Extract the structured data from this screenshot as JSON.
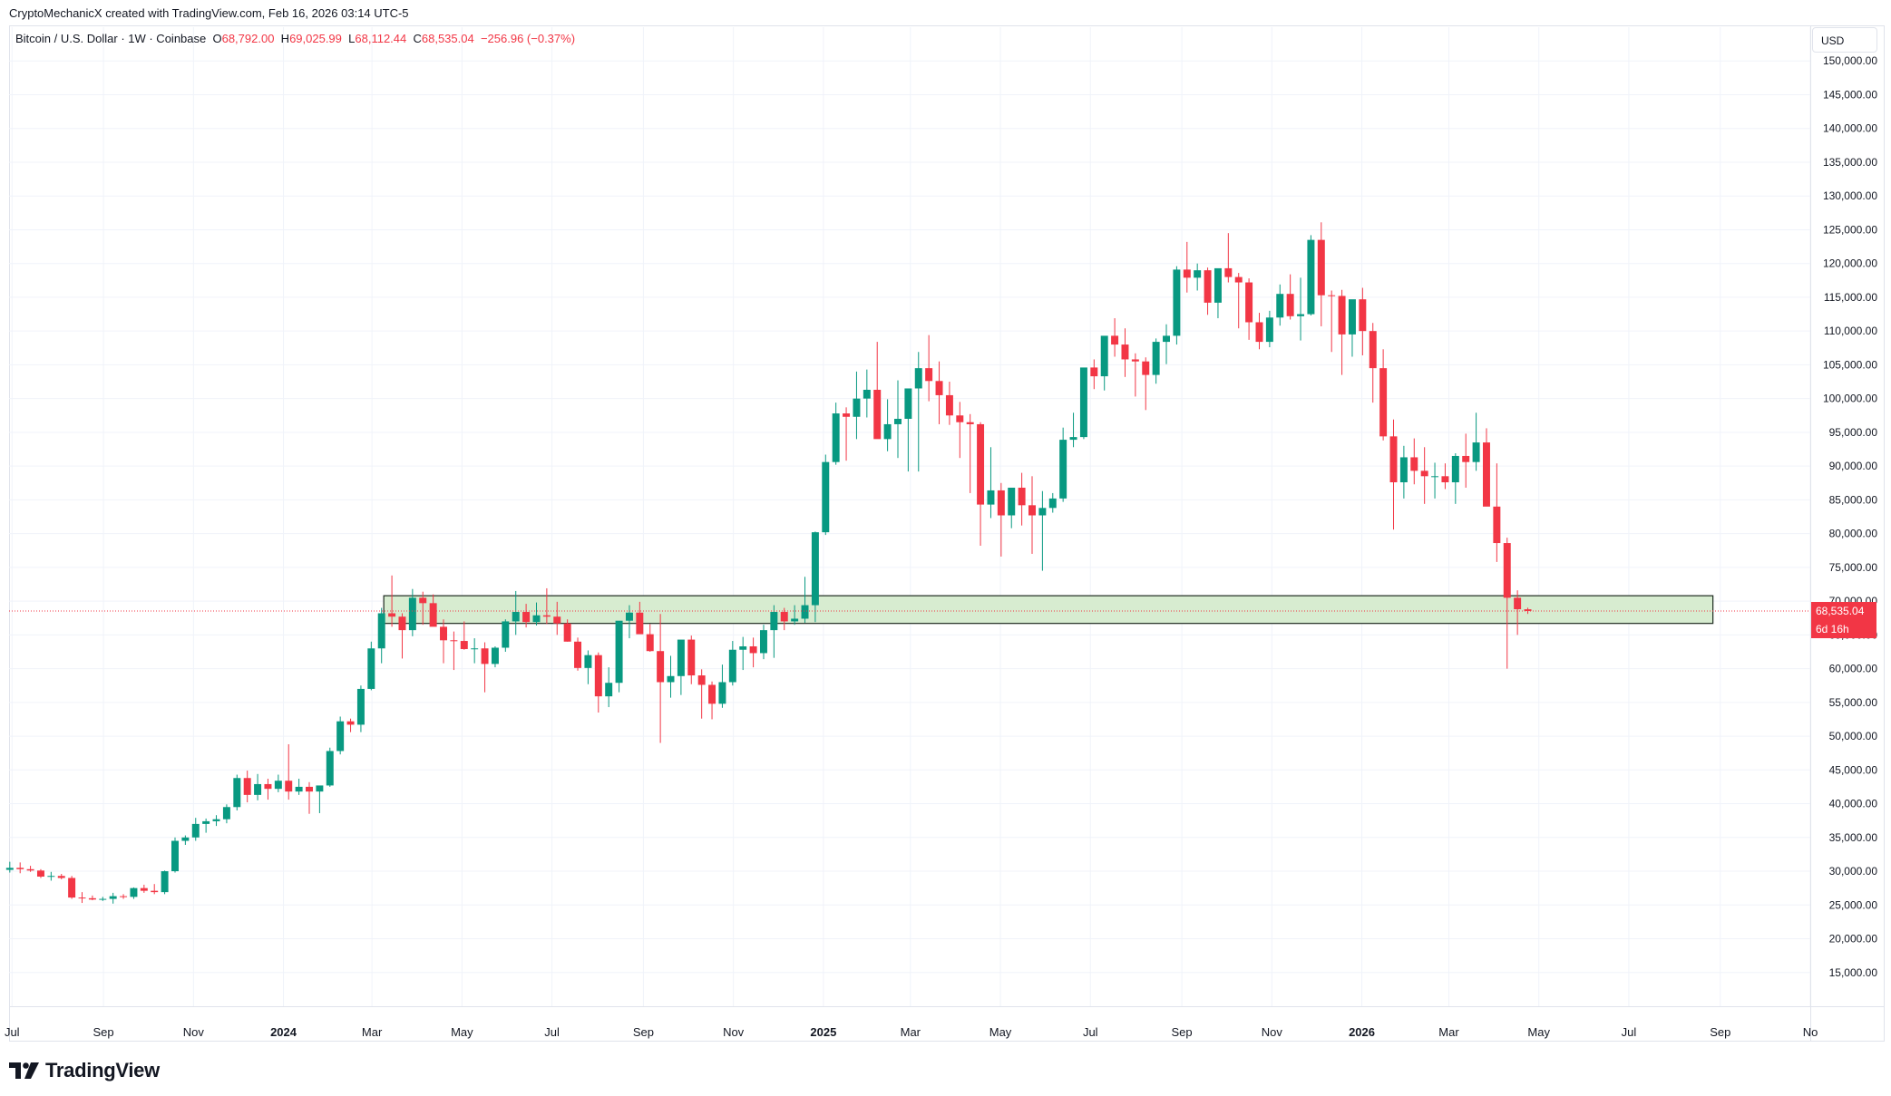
{
  "attribution": "CryptoMechanicX created with TradingView.com, Feb 16, 2026 03:14 UTC-5",
  "legend": {
    "symbol": "Bitcoin / U.S. Dollar · 1W · Coinbase",
    "o_label": "O",
    "o_value": "68,792.00",
    "h_label": "H",
    "h_value": "69,025.99",
    "l_label": "L",
    "l_value": "68,112.44",
    "c_label": "C",
    "c_value": "68,535.04",
    "change": "−256.96 (−0.37%)"
  },
  "currency_button": "USD",
  "price_tag": {
    "price": "68,535.04",
    "countdown": "6d 16h"
  },
  "brand": {
    "name": "TradingView"
  },
  "colors": {
    "up": "#089981",
    "down": "#f23645",
    "zone_fill": "#d7ecd0",
    "zone_border": "#1e2a20",
    "grid": "#f0f3fa"
  },
  "chart_data": {
    "type": "candlestick",
    "interval": "1W",
    "ylim": [
      10000,
      155000
    ],
    "y_ticks": [
      15000,
      20000,
      25000,
      30000,
      35000,
      40000,
      45000,
      50000,
      55000,
      60000,
      65000,
      70000,
      75000,
      80000,
      85000,
      90000,
      95000,
      100000,
      105000,
      110000,
      115000,
      120000,
      125000,
      130000,
      135000,
      140000,
      145000,
      150000
    ],
    "y_tick_labels": [
      "15,000.00",
      "20,000.00",
      "25,000.00",
      "30,000.00",
      "35,000.00",
      "40,000.00",
      "45,000.00",
      "50,000.00",
      "55,000.00",
      "60,000.00",
      "65,000.00",
      "70,000.00",
      "75,000.00",
      "80,000.00",
      "85,000.00",
      "90,000.00",
      "95,000.00",
      "100,000.00",
      "105,000.00",
      "110,000.00",
      "115,000.00",
      "120,000.00",
      "125,000.00",
      "130,000.00",
      "135,000.00",
      "140,000.00",
      "145,000.00",
      "150,000.00"
    ],
    "x_range": [
      "2023-06-29",
      "2026-11-01"
    ],
    "x_ticks": [
      {
        "date": "2023-07-01",
        "label": "Jul",
        "bold": false
      },
      {
        "date": "2023-09-01",
        "label": "Sep",
        "bold": false
      },
      {
        "date": "2023-11-01",
        "label": "Nov",
        "bold": false
      },
      {
        "date": "2024-01-01",
        "label": "2024",
        "bold": true
      },
      {
        "date": "2024-03-01",
        "label": "Mar",
        "bold": false
      },
      {
        "date": "2024-05-01",
        "label": "May",
        "bold": false
      },
      {
        "date": "2024-07-01",
        "label": "Jul",
        "bold": false
      },
      {
        "date": "2024-09-01",
        "label": "Sep",
        "bold": false
      },
      {
        "date": "2024-11-01",
        "label": "Nov",
        "bold": false
      },
      {
        "date": "2025-01-01",
        "label": "2025",
        "bold": true
      },
      {
        "date": "2025-03-01",
        "label": "Mar",
        "bold": false
      },
      {
        "date": "2025-05-01",
        "label": "May",
        "bold": false
      },
      {
        "date": "2025-07-01",
        "label": "Jul",
        "bold": false
      },
      {
        "date": "2025-09-01",
        "label": "Sep",
        "bold": false
      },
      {
        "date": "2025-11-01",
        "label": "Nov",
        "bold": false
      },
      {
        "date": "2026-01-01",
        "label": "2026",
        "bold": true
      },
      {
        "date": "2026-03-01",
        "label": "Mar",
        "bold": false
      },
      {
        "date": "2026-05-01",
        "label": "May",
        "bold": false
      },
      {
        "date": "2026-07-01",
        "label": "Jul",
        "bold": false
      },
      {
        "date": "2026-09-01",
        "label": "Sep",
        "bold": false
      },
      {
        "date": "2026-11-01",
        "label": "No",
        "bold": false
      }
    ],
    "first_candle": "2023-06-26",
    "candles_ohlc": [
      [
        30200,
        31400,
        29800,
        30500
      ],
      [
        30500,
        31300,
        29700,
        30300
      ],
      [
        30300,
        30800,
        29900,
        30100
      ],
      [
        30100,
        30300,
        29000,
        29200
      ],
      [
        29200,
        29900,
        28600,
        29300
      ],
      [
        29300,
        29600,
        28800,
        29000
      ],
      [
        29000,
        29300,
        25900,
        26100
      ],
      [
        26100,
        26900,
        25300,
        26000
      ],
      [
        26000,
        26400,
        25700,
        25800
      ],
      [
        25800,
        26200,
        25600,
        25900
      ],
      [
        25900,
        26800,
        25200,
        26300
      ],
      [
        26300,
        26600,
        25900,
        26200
      ],
      [
        26200,
        27600,
        25900,
        27500
      ],
      [
        27500,
        28000,
        26800,
        27100
      ],
      [
        27100,
        28100,
        26600,
        26900
      ],
      [
        26900,
        30100,
        26600,
        30000
      ],
      [
        30000,
        35000,
        29800,
        34500
      ],
      [
        34500,
        35300,
        33900,
        35000
      ],
      [
        35000,
        37900,
        34500,
        37000
      ],
      [
        37000,
        37800,
        35700,
        37400
      ],
      [
        37400,
        38300,
        36700,
        37700
      ],
      [
        37700,
        39900,
        37100,
        39500
      ],
      [
        39500,
        44300,
        39000,
        43800
      ],
      [
        43800,
        44900,
        40200,
        41300
      ],
      [
        41300,
        44400,
        40500,
        42900
      ],
      [
        42900,
        43700,
        40600,
        42200
      ],
      [
        42200,
        44300,
        41700,
        43400
      ],
      [
        43400,
        48800,
        40600,
        41800
      ],
      [
        41800,
        43700,
        41300,
        42500
      ],
      [
        42500,
        43200,
        38500,
        41800
      ],
      [
        41800,
        42600,
        38600,
        42700
      ],
      [
        42700,
        48300,
        42500,
        47800
      ],
      [
        47800,
        52900,
        47300,
        52200
      ],
      [
        52200,
        52600,
        50600,
        51700
      ],
      [
        51700,
        57500,
        50600,
        57000
      ],
      [
        57000,
        64000,
        56800,
        63000
      ],
      [
        63000,
        69000,
        60800,
        68200
      ],
      [
        68200,
        73800,
        66200,
        67700
      ],
      [
        67700,
        68200,
        61500,
        65700
      ],
      [
        65700,
        71800,
        64800,
        70500
      ],
      [
        70500,
        71400,
        66500,
        69700
      ],
      [
        69700,
        71000,
        66400,
        66200
      ],
      [
        66200,
        67300,
        60800,
        64200
      ],
      [
        64200,
        65500,
        59800,
        64100
      ],
      [
        64100,
        67000,
        62800,
        62900
      ],
      [
        62900,
        64500,
        60800,
        63000
      ],
      [
        63000,
        63900,
        56500,
        60700
      ],
      [
        60700,
        63300,
        60200,
        63100
      ],
      [
        63100,
        67300,
        62500,
        67000
      ],
      [
        67000,
        71500,
        65000,
        68400
      ],
      [
        68400,
        69600,
        66100,
        66900
      ],
      [
        66900,
        69800,
        66400,
        67900
      ],
      [
        67900,
        71900,
        66600,
        67700
      ],
      [
        67700,
        69900,
        65000,
        66700
      ],
      [
        66700,
        67300,
        64000,
        64000
      ],
      [
        64000,
        64600,
        59700,
        60100
      ],
      [
        60100,
        62700,
        57700,
        62000
      ],
      [
        62000,
        62400,
        53500,
        55900
      ],
      [
        55900,
        60200,
        54300,
        57900
      ],
      [
        57900,
        64700,
        56500,
        67100
      ],
      [
        67100,
        69400,
        64500,
        68300
      ],
      [
        68300,
        69900,
        65500,
        65100
      ],
      [
        65100,
        66600,
        62500,
        62600
      ],
      [
        62600,
        68100,
        49000,
        58000
      ],
      [
        58000,
        61900,
        55700,
        58900
      ],
      [
        58900,
        62700,
        56100,
        64300
      ],
      [
        64300,
        64900,
        57700,
        59000
      ],
      [
        59000,
        59900,
        52600,
        57600
      ],
      [
        57600,
        58100,
        52500,
        54800
      ],
      [
        54800,
        60600,
        54200,
        58000
      ],
      [
        58000,
        64100,
        57500,
        62800
      ],
      [
        62800,
        64700,
        59800,
        63300
      ],
      [
        63300,
        64600,
        60200,
        62300
      ],
      [
        62300,
        66500,
        61400,
        65700
      ],
      [
        65700,
        69400,
        61600,
        68400
      ],
      [
        68400,
        69000,
        65700,
        67000
      ],
      [
        67000,
        69400,
        66500,
        67400
      ],
      [
        67400,
        73600,
        66800,
        69400
      ],
      [
        69400,
        80300,
        66900,
        80200
      ],
      [
        80200,
        91700,
        79800,
        90600
      ],
      [
        90600,
        99400,
        90200,
        97800
      ],
      [
        97800,
        98700,
        90800,
        97300
      ],
      [
        97300,
        104000,
        94000,
        100000
      ],
      [
        100000,
        104300,
        97200,
        101300
      ],
      [
        101300,
        108400,
        94200,
        94000
      ],
      [
        94000,
        99900,
        92200,
        96200
      ],
      [
        96200,
        102700,
        91200,
        97000
      ],
      [
        97000,
        98700,
        89200,
        101500
      ],
      [
        101500,
        106900,
        89200,
        104500
      ],
      [
        104500,
        109400,
        99600,
        102600
      ],
      [
        102600,
        105500,
        96200,
        100500
      ],
      [
        100500,
        102500,
        96100,
        97500
      ],
      [
        97500,
        99500,
        91200,
        96500
      ],
      [
        96500,
        97700,
        86000,
        96200
      ],
      [
        96200,
        96500,
        78200,
        84300
      ],
      [
        84300,
        92800,
        82300,
        86400
      ],
      [
        86400,
        87500,
        76600,
        82700
      ],
      [
        82700,
        86200,
        80800,
        86800
      ],
      [
        86800,
        89000,
        81200,
        84200
      ],
      [
        84200,
        88500,
        77000,
        82700
      ],
      [
        82700,
        86300,
        74500,
        83800
      ],
      [
        83800,
        86000,
        83100,
        85200
      ],
      [
        85200,
        95700,
        84700,
        93900
      ],
      [
        93900,
        97900,
        92800,
        94300
      ],
      [
        94300,
        104000,
        94000,
        104600
      ],
      [
        104600,
        105800,
        101400,
        103300
      ],
      [
        103300,
        107000,
        101200,
        109300
      ],
      [
        109300,
        111900,
        106200,
        108000
      ],
      [
        108000,
        110400,
        103200,
        105800
      ],
      [
        105800,
        106700,
        100300,
        105500
      ],
      [
        105500,
        106100,
        98300,
        103500
      ],
      [
        103500,
        108900,
        102200,
        108400
      ],
      [
        108400,
        111000,
        105100,
        109300
      ],
      [
        109300,
        119600,
        108000,
        119100
      ],
      [
        119100,
        123200,
        115700,
        117900
      ],
      [
        117900,
        120000,
        116000,
        119000
      ],
      [
        119000,
        119400,
        112400,
        114200
      ],
      [
        114200,
        119000,
        111900,
        119300
      ],
      [
        119300,
        124500,
        117200,
        118000
      ],
      [
        118000,
        118600,
        110400,
        117200
      ],
      [
        117200,
        117800,
        108700,
        111300
      ],
      [
        111300,
        112700,
        107300,
        108400
      ],
      [
        108400,
        113000,
        107600,
        112000
      ],
      [
        112000,
        116900,
        110800,
        115500
      ],
      [
        115500,
        118400,
        111700,
        112200
      ],
      [
        112200,
        117900,
        108600,
        112500
      ],
      [
        112500,
        124200,
        112300,
        123500
      ],
      [
        123500,
        126100,
        110700,
        115300
      ],
      [
        115300,
        116000,
        106900,
        115200
      ],
      [
        115200,
        116100,
        103500,
        109500
      ],
      [
        109500,
        111800,
        106200,
        114700
      ],
      [
        114700,
        116400,
        106400,
        110000
      ],
      [
        110000,
        111200,
        99400,
        104500
      ],
      [
        104500,
        107300,
        93800,
        94400
      ],
      [
        94400,
        96900,
        80600,
        87600
      ],
      [
        87600,
        93000,
        85200,
        91300
      ],
      [
        91300,
        94100,
        87300,
        89300
      ],
      [
        89300,
        92800,
        84400,
        88500
      ],
      [
        88500,
        90500,
        85200,
        88500
      ],
      [
        88500,
        90400,
        86600,
        87600
      ],
      [
        87600,
        91900,
        84400,
        91500
      ],
      [
        91500,
        94800,
        86800,
        90600
      ],
      [
        90600,
        97900,
        89300,
        93500
      ],
      [
        93500,
        95600,
        86400,
        84000
      ],
      [
        84000,
        90400,
        75800,
        78600
      ],
      [
        78600,
        79400,
        60000,
        70500
      ],
      [
        70500,
        71600,
        65000,
        68800
      ],
      [
        68792,
        69026,
        68112,
        68535
      ]
    ],
    "zone": {
      "from": "2024-03-09",
      "to": "2026-08-27",
      "low": 66700,
      "high": 70800
    },
    "last_price": 68535.04
  }
}
